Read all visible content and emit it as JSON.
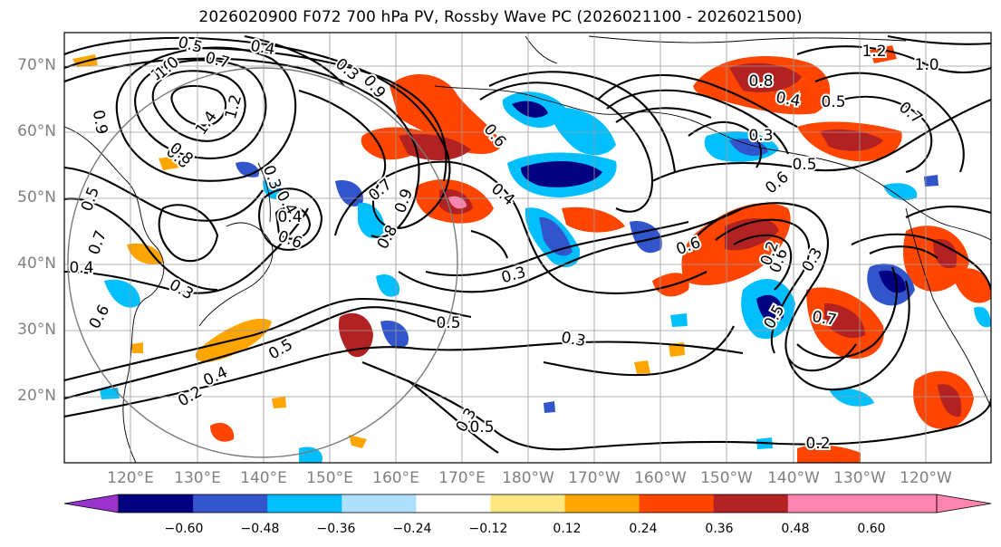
{
  "title": "2026020900 F072 700 hPa PV, Rossby Wave PC (2026021100 - 2026021500)",
  "map": {
    "lat_labels": [
      "70°N",
      "60°N",
      "50°N",
      "40°N",
      "30°N",
      "20°N"
    ],
    "lon_labels": [
      "120°E",
      "130°E",
      "140°E",
      "150°E",
      "160°E",
      "170°E",
      "180°W",
      "170°W",
      "160°W",
      "150°W",
      "140°W",
      "130°W",
      "120°W"
    ],
    "contour_labels": [
      "0.5",
      "0.4",
      "0.7",
      "1.0",
      "1.2",
      "1.4",
      "0.8",
      "0.9",
      "0.3",
      "0.6",
      "0.5",
      "0.4",
      "0.3",
      "0.4",
      "0.3",
      "0.6",
      "0.8",
      "0.9",
      "0.7",
      "0.4",
      "0.5",
      "0.3",
      "0.6",
      "0.5",
      "0.6",
      "0.5",
      "0.3",
      "0.2",
      "0.4",
      "0.6",
      "0.7",
      "0.8",
      "0.9",
      "1.0",
      "0.4",
      "0.3",
      "0.5",
      "0.7",
      "0.8",
      "1.2",
      "1.0",
      "0.6",
      "0.5",
      "0.7",
      "0.2",
      "0.3",
      "0.4",
      "0.3",
      "0.5",
      "0.2"
    ]
  },
  "colorbar": {
    "ticks": [
      "−0.60",
      "−0.48",
      "−0.36",
      "−0.24",
      "−0.12",
      "0.12",
      "0.24",
      "0.36",
      "0.48",
      "0.60"
    ],
    "colors": [
      "#9933cc",
      "#000080",
      "#3355cc",
      "#00bfff",
      "#b0e0ff",
      "#ffffff",
      "#ffe680",
      "#ffa500",
      "#ff4500",
      "#b22222",
      "#ff85b0",
      "#ff85b0"
    ]
  }
}
